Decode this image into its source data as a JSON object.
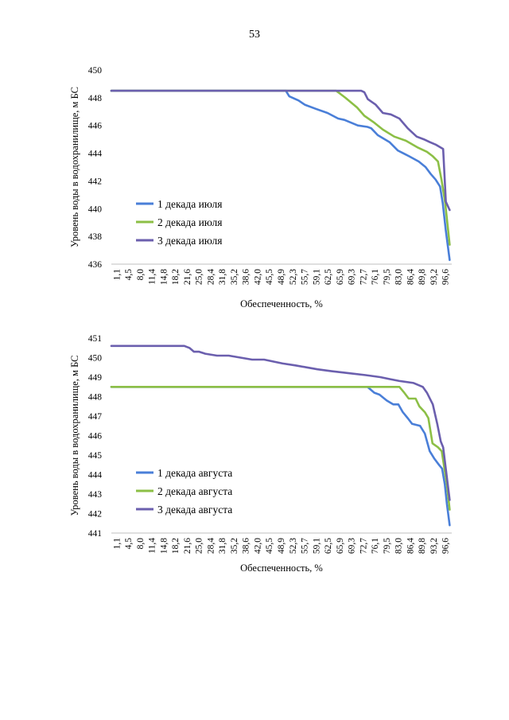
{
  "page": {
    "number": "53"
  },
  "colors": {
    "series1": "#4a7fd8",
    "series2": "#8cbf46",
    "series3": "#6b5fae"
  },
  "chart_data": [
    {
      "type": "line",
      "title": "",
      "xlabel": "Обеспеченность, %",
      "ylabel": "Уровень воды в водохранилище, м БС",
      "ylim": [
        436,
        450
      ],
      "yticks": [
        436,
        438,
        440,
        442,
        444,
        446,
        448,
        450
      ],
      "xlim": [
        1.1,
        100
      ],
      "xticks": [
        "1,1",
        "4,5",
        "8,0",
        "11,4",
        "14,8",
        "18,2",
        "21,6",
        "25,0",
        "28,4",
        "31,8",
        "35,2",
        "38,6",
        "42,0",
        "45,5",
        "48,9",
        "52,3",
        "55,7",
        "59,1",
        "62,5",
        "65,9",
        "69,3",
        "72,7",
        "76,1",
        "79,5",
        "83,0",
        "86,4",
        "89,8",
        "93,2",
        "96,6"
      ],
      "grid": false,
      "legend_position": "left",
      "series": [
        {
          "name": "1 декада июля",
          "x": [
            1.1,
            51.8,
            52.8,
            55.5,
            57.3,
            60.5,
            63.9,
            67.0,
            68.8,
            72.7,
            75.5,
            76.6,
            78.5,
            81.9,
            84.3,
            87.5,
            90.4,
            92.4,
            93.9,
            95.3,
            96.6,
            97.4,
            98.3,
            99.4
          ],
          "y": [
            448.5,
            448.5,
            448.1,
            447.8,
            447.5,
            447.2,
            446.9,
            446.5,
            446.4,
            446.0,
            445.9,
            445.8,
            445.3,
            444.8,
            444.2,
            443.8,
            443.4,
            443.0,
            442.5,
            442.1,
            441.6,
            440.4,
            438.4,
            436.3
          ]
        },
        {
          "name": "2 декада июля",
          "x": [
            1.1,
            66.4,
            67.5,
            69.1,
            72.5,
            74.6,
            77.5,
            80.0,
            83.3,
            86.7,
            90.2,
            92.8,
            94.4,
            96.0,
            97.1,
            98.1,
            99.4
          ],
          "y": [
            448.5,
            448.5,
            448.3,
            448.0,
            447.3,
            446.7,
            446.2,
            445.7,
            445.2,
            444.9,
            444.4,
            444.1,
            443.8,
            443.4,
            442.0,
            440.4,
            437.4
          ]
        },
        {
          "name": "3 декада июля",
          "x": [
            1.1,
            73.7,
            74.6,
            75.6,
            77.9,
            80.0,
            82.3,
            84.8,
            87.2,
            89.8,
            91.9,
            93.6,
            95.5,
            97.5,
            98.3,
            99.4
          ],
          "y": [
            448.5,
            448.5,
            448.4,
            447.9,
            447.5,
            446.9,
            446.8,
            446.5,
            445.8,
            445.2,
            445.0,
            444.8,
            444.6,
            444.3,
            440.5,
            439.9
          ]
        }
      ]
    },
    {
      "type": "line",
      "title": "",
      "xlabel": "Обеспеченность, %",
      "ylabel": "Уровень воды в водохранилище, м БС",
      "ylim": [
        441,
        451
      ],
      "yticks": [
        441,
        442,
        443,
        444,
        445,
        446,
        447,
        448,
        449,
        450,
        451
      ],
      "xlim": [
        1.1,
        100
      ],
      "xticks": [
        "1,1",
        "4,5",
        "8,0",
        "11,4",
        "14,8",
        "18,2",
        "21,6",
        "25,0",
        "28,4",
        "31,8",
        "35,2",
        "38,6",
        "42,0",
        "45,5",
        "48,9",
        "52,3",
        "55,7",
        "59,1",
        "62,5",
        "65,9",
        "69,3",
        "72,7",
        "76,1",
        "79,5",
        "83,0",
        "86,4",
        "89,8",
        "93,2",
        "96,6"
      ],
      "grid": false,
      "legend_position": "bottom-left",
      "series": [
        {
          "name": "1 декада августа",
          "x": [
            1.1,
            75.5,
            77.5,
            79.0,
            81.1,
            83.0,
            84.5,
            85.8,
            87.2,
            88.5,
            90.8,
            92.2,
            93.6,
            95.0,
            96.3,
            97.2,
            98.0,
            98.6,
            99.4
          ],
          "y": [
            448.5,
            448.5,
            448.2,
            448.1,
            447.8,
            447.6,
            447.6,
            447.2,
            446.9,
            446.6,
            446.5,
            446.1,
            445.2,
            444.8,
            444.5,
            444.3,
            443.5,
            442.5,
            441.4
          ]
        },
        {
          "name": "2 декада августа",
          "x": [
            1.1,
            84.8,
            86.2,
            87.5,
            89.5,
            90.6,
            92.2,
            93.2,
            94.4,
            96.0,
            97.1,
            98.6,
            99.4
          ],
          "y": [
            448.5,
            448.5,
            448.2,
            447.9,
            447.9,
            447.5,
            447.2,
            446.9,
            445.6,
            445.4,
            445.2,
            443.5,
            442.2
          ]
        },
        {
          "name": "3 декада августа",
          "x": [
            1.1,
            22.3,
            23.8,
            25.1,
            26.6,
            28.4,
            31.8,
            35.2,
            38.6,
            42.0,
            45.5,
            48.1,
            50.9,
            54.6,
            57.9,
            61.0,
            65.1,
            70.1,
            75.0,
            79.2,
            82.0,
            84.8,
            88.9,
            91.6,
            92.8,
            94.5,
            95.8,
            96.8,
            97.5,
            99.4
          ],
          "y": [
            450.6,
            450.6,
            450.5,
            450.3,
            450.3,
            450.2,
            450.1,
            450.1,
            450.0,
            449.9,
            449.9,
            449.8,
            449.7,
            449.6,
            449.5,
            449.4,
            449.3,
            449.2,
            449.1,
            449.0,
            448.9,
            448.8,
            448.7,
            448.5,
            448.2,
            447.6,
            446.6,
            445.7,
            445.4,
            442.7
          ]
        }
      ]
    }
  ]
}
